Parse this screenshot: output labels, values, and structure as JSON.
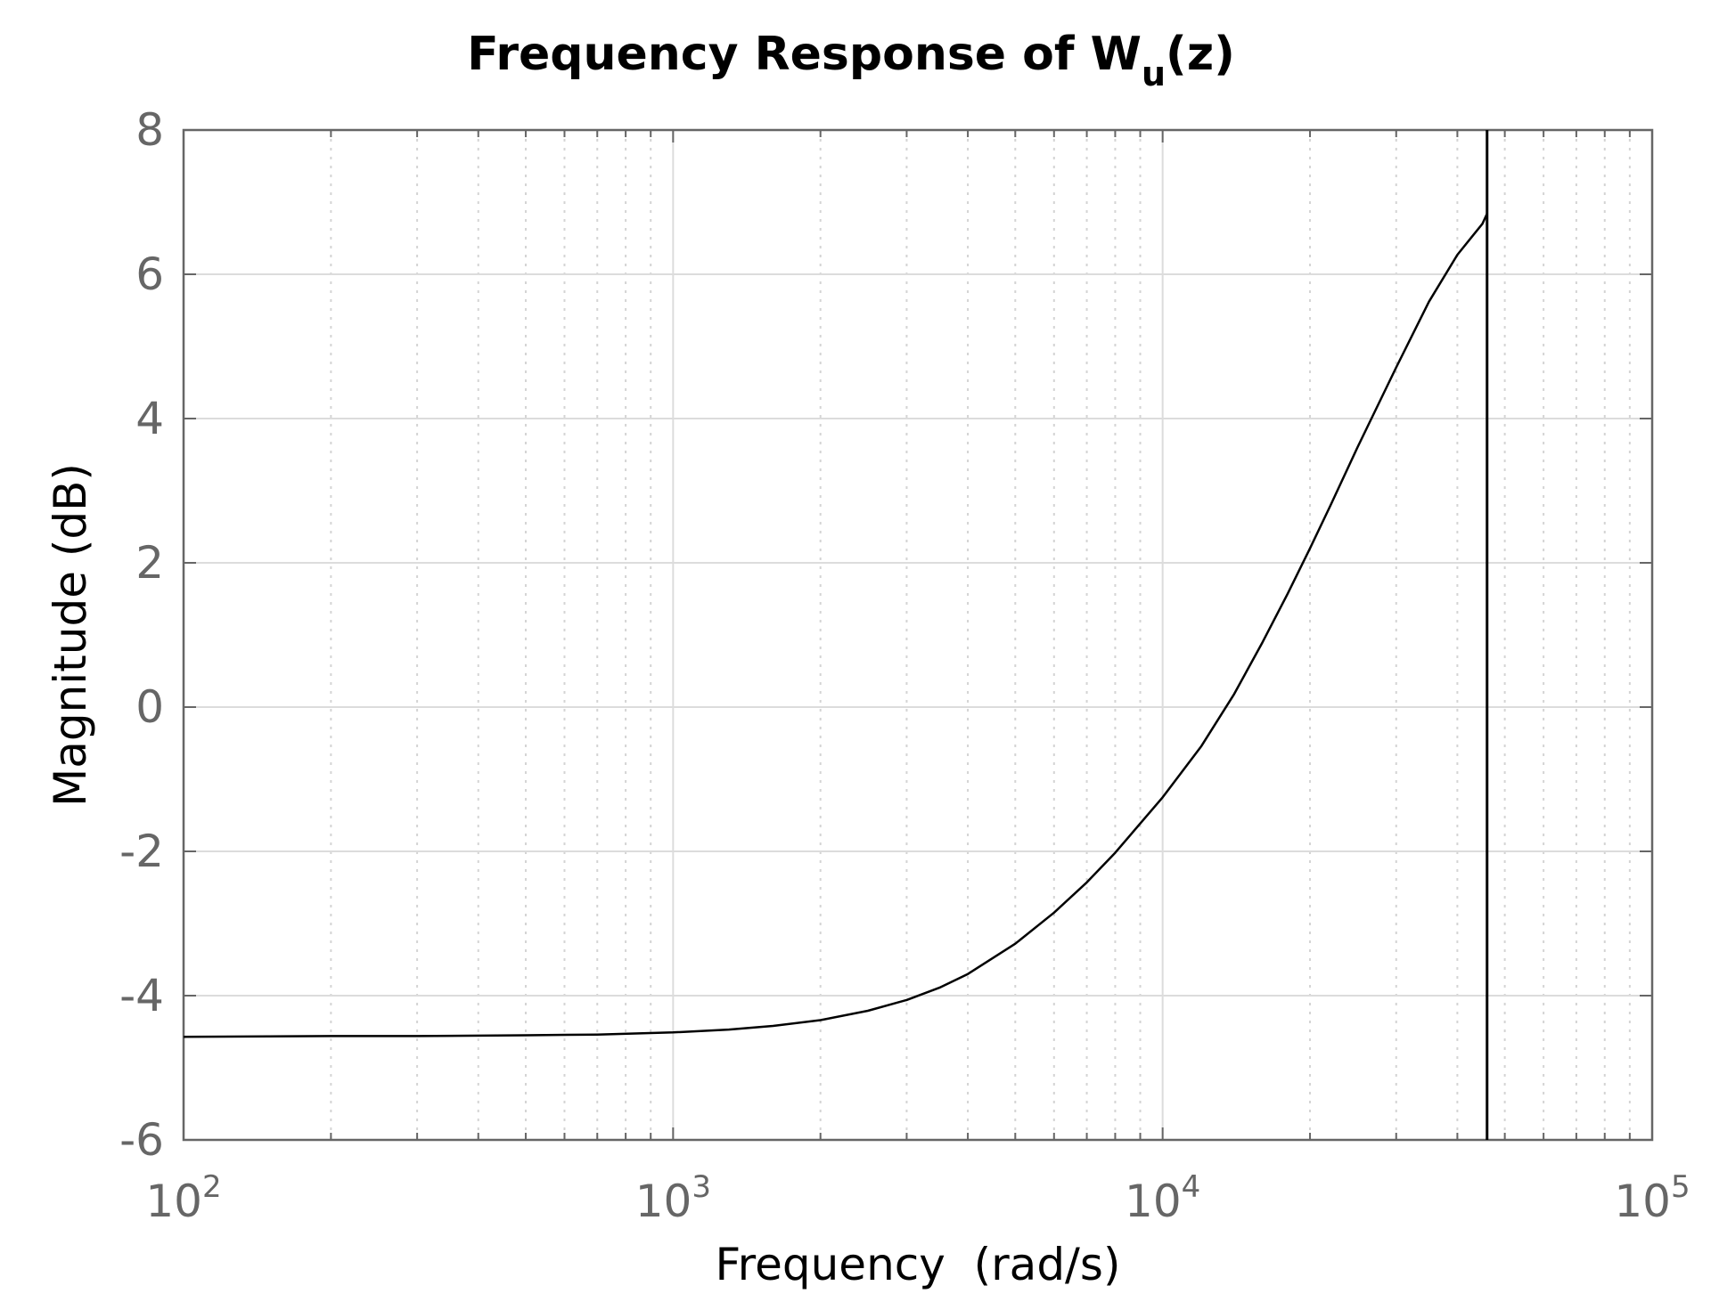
{
  "chart_data": {
    "type": "line",
    "title": "Frequency Response of W",
    "title_subscript": "u",
    "title_suffix": "(z)",
    "xlabel": "Frequency  (rad/s)",
    "ylabel": "Magnitude (dB)",
    "xscale": "log",
    "xlim": [
      100,
      100000
    ],
    "ylim": [
      -6,
      8
    ],
    "grid": true,
    "x_ticks": [
      {
        "base": "10",
        "exp": "2",
        "value": 100
      },
      {
        "base": "10",
        "exp": "3",
        "value": 1000
      },
      {
        "base": "10",
        "exp": "4",
        "value": 10000
      },
      {
        "base": "10",
        "exp": "5",
        "value": 100000
      }
    ],
    "y_ticks": [
      {
        "label": "8",
        "value": 8
      },
      {
        "label": "6",
        "value": 6
      },
      {
        "label": "4",
        "value": 4
      },
      {
        "label": "2",
        "value": 2
      },
      {
        "label": "0",
        "value": 0
      },
      {
        "label": "-2",
        "value": -2
      },
      {
        "label": "-4",
        "value": -4
      },
      {
        "label": "-6",
        "value": -6
      }
    ],
    "series": [
      {
        "color": "#000000",
        "x": [
          100,
          200,
          300,
          500,
          700,
          1000,
          1300,
          1600,
          2000,
          2500,
          3000,
          3500,
          4000,
          5000,
          6000,
          7000,
          8000,
          10000,
          12000,
          14000,
          16000,
          18000,
          20000,
          22000,
          25000,
          30000,
          35000,
          40000,
          45000,
          46000
        ],
        "y": [
          -4.57,
          -4.56,
          -4.56,
          -4.55,
          -4.54,
          -4.51,
          -4.47,
          -4.42,
          -4.34,
          -4.21,
          -4.06,
          -3.89,
          -3.7,
          -3.28,
          -2.85,
          -2.43,
          -2.02,
          -1.25,
          -0.54,
          0.18,
          0.9,
          1.57,
          2.2,
          2.79,
          3.6,
          4.71,
          5.62,
          6.27,
          6.7,
          6.84
        ]
      }
    ],
    "nyquist_marker_x": 46000
  }
}
